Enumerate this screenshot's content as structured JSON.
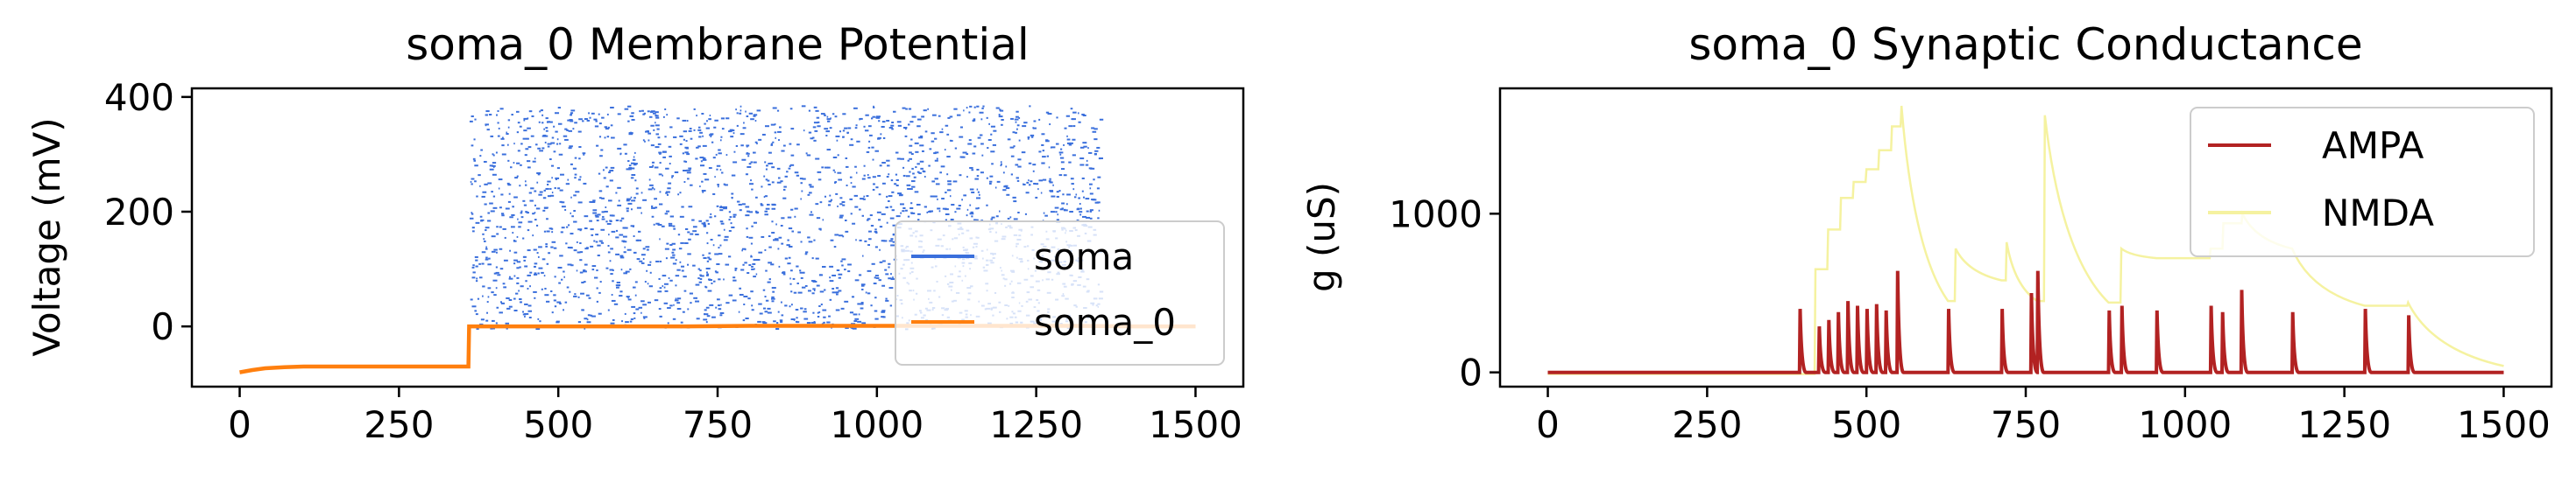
{
  "chart_data": [
    {
      "type": "line",
      "title": "soma_0 Membrane Potential",
      "xlabel": "",
      "ylabel": "Voltage (mV)",
      "xlim": [
        -75,
        1575
      ],
      "ylim": [
        -105,
        415
      ],
      "xticks": [
        0,
        250,
        500,
        750,
        1000,
        1250,
        1500
      ],
      "yticks": [
        0,
        200,
        400
      ],
      "grid": false,
      "legend_position": "center-right",
      "series": [
        {
          "name": "soma",
          "color": "#3a6fdc",
          "style": "dense short horizontal dashes (spike raster-like)",
          "x_range": [
            360,
            1350
          ],
          "y_range": [
            -5,
            385
          ]
        },
        {
          "name": "soma_0",
          "color": "#ff7f0e",
          "x": [
            0,
            20,
            40,
            70,
            100,
            150,
            200,
            250,
            300,
            359,
            360,
            400,
            500,
            600,
            700,
            800,
            900,
            1000,
            1100,
            1200,
            1300,
            1400,
            1500
          ],
          "y": [
            -80,
            -76,
            -73,
            -71,
            -70,
            -70,
            -70,
            -70,
            -70,
            -70,
            0,
            0,
            0,
            0,
            0,
            1,
            1,
            1,
            1,
            1,
            1,
            0,
            0
          ]
        }
      ]
    },
    {
      "type": "line",
      "title": "soma_0 Synaptic Conductance",
      "xlabel": "",
      "ylabel": "g (uS)",
      "xlim": [
        -75,
        1575
      ],
      "ylim": [
        -90,
        1790
      ],
      "xticks": [
        0,
        250,
        500,
        750,
        1000,
        1250,
        1500
      ],
      "yticks": [
        0,
        1000
      ],
      "grid": false,
      "legend_position": "top-right",
      "series": [
        {
          "name": "AMPA",
          "color": "#b22222",
          "baseline": 0,
          "event_times": [
            395,
            425,
            440,
            455,
            470,
            485,
            500,
            515,
            530,
            548,
            628,
            712,
            758,
            768,
            880,
            900,
            955,
            1040,
            1058,
            1088,
            1168,
            1282,
            1350
          ],
          "event_peaks": [
            400,
            290,
            330,
            380,
            450,
            420,
            400,
            430,
            390,
            640,
            400,
            400,
            500,
            640,
            390,
            420,
            390,
            420,
            380,
            520,
            380,
            400,
            360
          ]
        },
        {
          "name": "NMDA",
          "color": "#f5f2a0",
          "x": [
            0,
            395,
            420,
            440,
            460,
            480,
            500,
            520,
            540,
            555,
            628,
            640,
            712,
            720,
            768,
            780,
            880,
            900,
            955,
            1040,
            1060,
            1090,
            1168,
            1282,
            1350,
            1500
          ],
          "y": [
            -10,
            -10,
            650,
            900,
            1100,
            1200,
            1280,
            1400,
            1550,
            1680,
            450,
            780,
            580,
            820,
            450,
            1620,
            440,
            780,
            720,
            780,
            940,
            1000,
            780,
            420,
            440,
            40
          ]
        }
      ]
    }
  ]
}
